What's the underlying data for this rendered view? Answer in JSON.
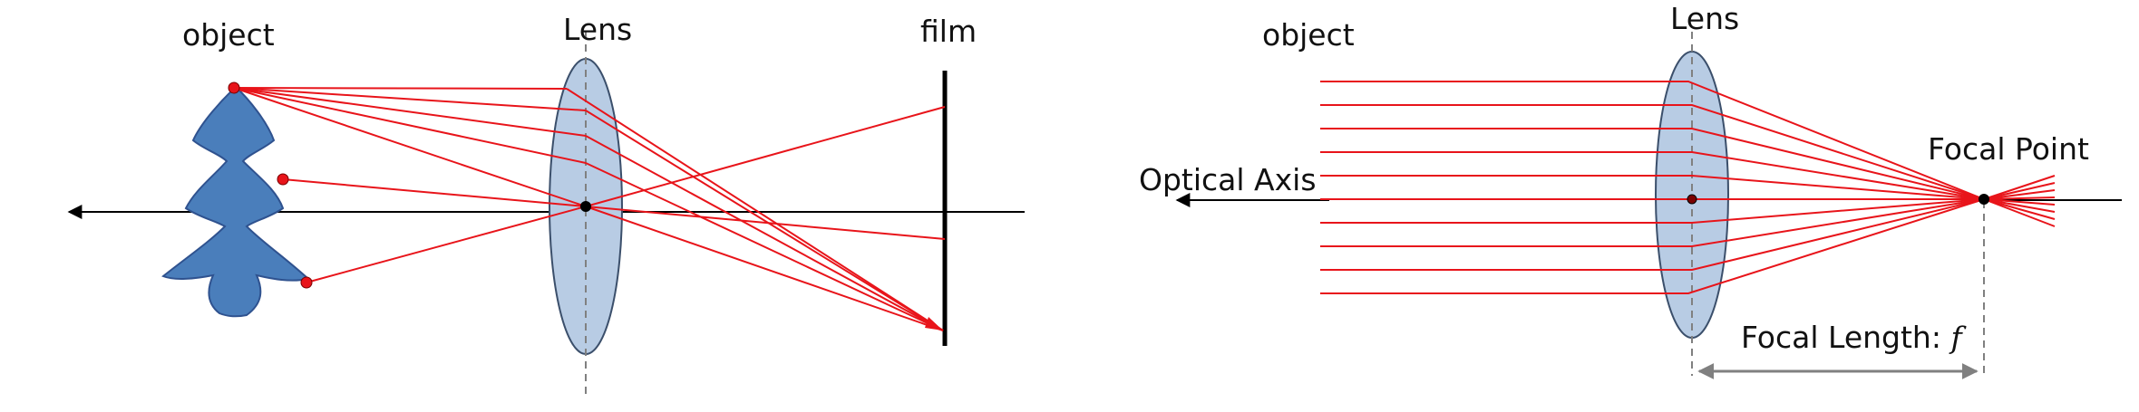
{
  "left_diagram": {
    "object_label": "object",
    "lens_label": "Lens",
    "film_label": "film"
  },
  "right_diagram": {
    "object_label": "object",
    "lens_label": "Lens",
    "optical_axis_label": "Optical Axis",
    "focal_point_label": "Focal Point",
    "focal_length_label": "Focal Length:",
    "focal_length_symbol": "f"
  },
  "colors": {
    "ray": "#e8141a",
    "object_fill": "#4a7ebb",
    "lens_fill": "#b8cce4",
    "lens_stroke": "#3b4f6b",
    "dimension_arrow": "#808080"
  }
}
